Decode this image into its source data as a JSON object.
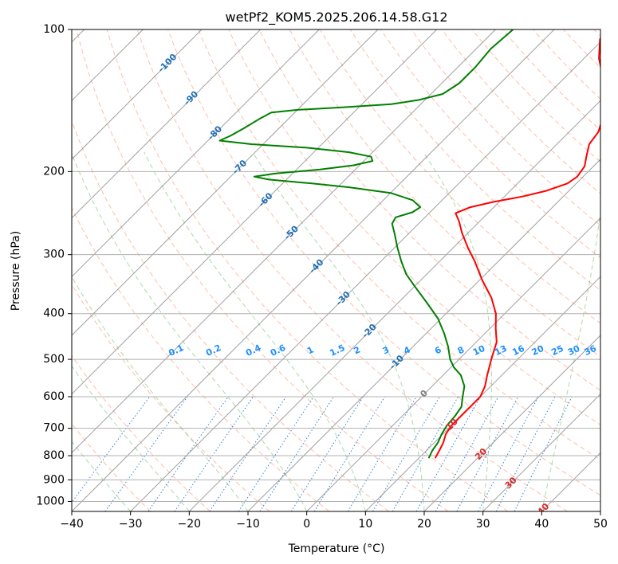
{
  "chart_data": {
    "type": "line",
    "subtype": "skew-t log-p diagram",
    "title": "wetPf2_KOM5.2025.206.14.58.G12",
    "xlabel": "Temperature (°C)",
    "ylabel": "Pressure (hPa)",
    "xlim": [
      -40,
      50
    ],
    "ylim_hpa": [
      1050,
      100
    ],
    "y_scale": "log",
    "skew": "isotherms slanted 45 degrees",
    "grid": true,
    "x_ticks": [
      "−40",
      "−30",
      "−20",
      "−10",
      "0",
      "10",
      "20",
      "30",
      "40",
      "50"
    ],
    "x_tick_values": [
      -40,
      -30,
      -20,
      -10,
      0,
      10,
      20,
      30,
      40,
      50
    ],
    "y_ticks": [
      "100",
      "200",
      "300",
      "400",
      "500",
      "600",
      "700",
      "800",
      "900",
      "1000"
    ],
    "y_tick_values": [
      100,
      200,
      300,
      400,
      500,
      600,
      700,
      800,
      900,
      1000
    ],
    "colors": {
      "temperature": "#ff0000",
      "dewpoint": "#008000",
      "dry_adiabat": "#ff8866",
      "moist_adiabat": "#66bb66",
      "mixing_ratio": "#1f77d4",
      "isotherm": "#808080",
      "isobar": "#b0b0b0",
      "isotherm_label_cold": "#1f6fb4",
      "isotherm_label_warm": "#d62728",
      "isotherm_label_zero": "#808080",
      "mixing_ratio_label": "#1e90ff"
    },
    "series": [
      {
        "key": "temperature",
        "points": [
          {
            "p": 810,
            "t": 12.8
          },
          {
            "p": 780,
            "t": 12.2
          },
          {
            "p": 750,
            "t": 11.5
          },
          {
            "p": 720,
            "t": 10.5
          },
          {
            "p": 690,
            "t": 10.0
          },
          {
            "p": 660,
            "t": 10.0
          },
          {
            "p": 630,
            "t": 10.0
          },
          {
            "p": 600,
            "t": 10.0
          },
          {
            "p": 570,
            "t": 9.0
          },
          {
            "p": 540,
            "t": 7.5
          },
          {
            "p": 500,
            "t": 5.5
          },
          {
            "p": 460,
            "t": 3.5
          },
          {
            "p": 430,
            "t": 1.0
          },
          {
            "p": 400,
            "t": -1.5
          },
          {
            "p": 370,
            "t": -5.0
          },
          {
            "p": 340,
            "t": -9.5
          },
          {
            "p": 310,
            "t": -14.0
          },
          {
            "p": 290,
            "t": -17.5
          },
          {
            "p": 270,
            "t": -21.0
          },
          {
            "p": 255,
            "t": -23.5
          },
          {
            "p": 245,
            "t": -25.5
          },
          {
            "p": 238,
            "t": -24.0
          },
          {
            "p": 232,
            "t": -21.0
          },
          {
            "p": 226,
            "t": -17.0
          },
          {
            "p": 220,
            "t": -14.0
          },
          {
            "p": 212,
            "t": -11.5
          },
          {
            "p": 205,
            "t": -11.0
          },
          {
            "p": 195,
            "t": -11.5
          },
          {
            "p": 185,
            "t": -13.0
          },
          {
            "p": 175,
            "t": -14.5
          },
          {
            "p": 165,
            "t": -15.0
          },
          {
            "p": 155,
            "t": -16.5
          },
          {
            "p": 145,
            "t": -18.5
          },
          {
            "p": 135,
            "t": -21.0
          },
          {
            "p": 125,
            "t": -24.0
          },
          {
            "p": 115,
            "t": -27.5
          },
          {
            "p": 105,
            "t": -30.5
          },
          {
            "p": 100,
            "t": -31.5
          }
        ]
      },
      {
        "key": "dewpoint",
        "points": [
          {
            "p": 810,
            "t": 11.7
          },
          {
            "p": 780,
            "t": 11.0
          },
          {
            "p": 750,
            "t": 10.6
          },
          {
            "p": 720,
            "t": 9.8
          },
          {
            "p": 690,
            "t": 9.2
          },
          {
            "p": 660,
            "t": 9.0
          },
          {
            "p": 630,
            "t": 8.5
          },
          {
            "p": 600,
            "t": 7.0
          },
          {
            "p": 570,
            "t": 5.5
          },
          {
            "p": 540,
            "t": 3.0
          },
          {
            "p": 520,
            "t": 0.5
          },
          {
            "p": 500,
            "t": -1.5
          },
          {
            "p": 470,
            "t": -4.0
          },
          {
            "p": 440,
            "t": -7.0
          },
          {
            "p": 410,
            "t": -10.5
          },
          {
            "p": 380,
            "t": -15.0
          },
          {
            "p": 350,
            "t": -20.0
          },
          {
            "p": 330,
            "t": -23.5
          },
          {
            "p": 310,
            "t": -26.5
          },
          {
            "p": 290,
            "t": -29.5
          },
          {
            "p": 270,
            "t": -32.5
          },
          {
            "p": 258,
            "t": -34.5
          },
          {
            "p": 250,
            "t": -35.0
          },
          {
            "p": 244,
            "t": -33.0
          },
          {
            "p": 238,
            "t": -32.5
          },
          {
            "p": 230,
            "t": -35.0
          },
          {
            "p": 222,
            "t": -40.0
          },
          {
            "p": 216,
            "t": -48.0
          },
          {
            "p": 212,
            "t": -55.0
          },
          {
            "p": 208,
            "t": -63.0
          },
          {
            "p": 205,
            "t": -66.0
          },
          {
            "p": 202,
            "t": -63.0
          },
          {
            "p": 198,
            "t": -56.0
          },
          {
            "p": 194,
            "t": -51.0
          },
          {
            "p": 190,
            "t": -48.5
          },
          {
            "p": 186,
            "t": -49.5
          },
          {
            "p": 182,
            "t": -54.0
          },
          {
            "p": 178,
            "t": -62.0
          },
          {
            "p": 175,
            "t": -72.0
          },
          {
            "p": 172,
            "t": -78.0
          },
          {
            "p": 168,
            "t": -77.0
          },
          {
            "p": 162,
            "t": -76.0
          },
          {
            "p": 155,
            "t": -75.0
          },
          {
            "p": 150,
            "t": -74.0
          },
          {
            "p": 148,
            "t": -70.0
          },
          {
            "p": 146,
            "t": -62.0
          },
          {
            "p": 144,
            "t": -55.0
          },
          {
            "p": 141,
            "t": -51.0
          },
          {
            "p": 137,
            "t": -48.0
          },
          {
            "p": 130,
            "t": -47.0
          },
          {
            "p": 120,
            "t": -47.0
          },
          {
            "p": 110,
            "t": -47.5
          },
          {
            "p": 100,
            "t": -47.0
          }
        ]
      }
    ],
    "isotherm_labels": [
      {
        "text": "-100",
        "t": -100,
        "p": 118,
        "color_key": "isotherm_label_cold"
      },
      {
        "text": "-90",
        "t": -90,
        "p": 140,
        "color_key": "isotherm_label_cold"
      },
      {
        "text": "-80",
        "t": -80,
        "p": 166,
        "color_key": "isotherm_label_cold"
      },
      {
        "text": "-70",
        "t": -70,
        "p": 196,
        "color_key": "isotherm_label_cold"
      },
      {
        "text": "-60",
        "t": -60,
        "p": 230,
        "color_key": "isotherm_label_cold"
      },
      {
        "text": "-50",
        "t": -50,
        "p": 270,
        "color_key": "isotherm_label_cold"
      },
      {
        "text": "-40",
        "t": -40,
        "p": 318,
        "color_key": "isotherm_label_cold"
      },
      {
        "text": "-30",
        "t": -30,
        "p": 372,
        "color_key": "isotherm_label_cold"
      },
      {
        "text": "-20",
        "t": -20,
        "p": 436,
        "color_key": "isotherm_label_cold"
      },
      {
        "text": "-10",
        "t": -10,
        "p": 508,
        "color_key": "isotherm_label_cold"
      },
      {
        "text": "0",
        "t": 0,
        "p": 592,
        "color_key": "isotherm_label_zero"
      },
      {
        "text": "10",
        "t": 10,
        "p": 688,
        "color_key": "isotherm_label_warm"
      },
      {
        "text": "20",
        "t": 20,
        "p": 795,
        "color_key": "isotherm_label_warm"
      },
      {
        "text": "30",
        "t": 30,
        "p": 915,
        "color_key": "isotherm_label_warm"
      },
      {
        "text": "40",
        "t": 40,
        "p": 1040,
        "color_key": "isotherm_label_warm"
      }
    ],
    "mixing_ratio_lines": [
      {
        "text": "0.1",
        "w": 0.1
      },
      {
        "text": "0.2",
        "w": 0.2
      },
      {
        "text": "0.4",
        "w": 0.4
      },
      {
        "text": "0.6",
        "w": 0.6
      },
      {
        "text": "1",
        "w": 1
      },
      {
        "text": "1.5",
        "w": 1.5
      },
      {
        "text": "2",
        "w": 2
      },
      {
        "text": "3",
        "w": 3
      },
      {
        "text": "4",
        "w": 4
      },
      {
        "text": "6",
        "w": 6
      },
      {
        "text": "8",
        "w": 8
      },
      {
        "text": "10",
        "w": 10
      },
      {
        "text": "13",
        "w": 13
      },
      {
        "text": "16",
        "w": 16
      },
      {
        "text": "20",
        "w": 20
      },
      {
        "text": "25",
        "w": 25
      },
      {
        "text": "30",
        "w": 30
      },
      {
        "text": "36",
        "w": 36
      }
    ],
    "mixing_ratio_label_pressure": 500,
    "dry_adiabat_thetas_c": [
      -30,
      -20,
      -10,
      0,
      10,
      20,
      30,
      40,
      50,
      60,
      70,
      80,
      90,
      100,
      110,
      120,
      130,
      140,
      150,
      160,
      170,
      180,
      190,
      200,
      210,
      220
    ],
    "moist_adiabat_start_t_c": [
      -30,
      -20,
      -10,
      0,
      10,
      20,
      30,
      40
    ],
    "isotherm_values_c": [
      -130,
      -120,
      -110,
      -100,
      -90,
      -80,
      -70,
      -60,
      -50,
      -40,
      -30,
      -20,
      -10,
      0,
      10,
      20,
      30,
      40,
      50
    ]
  }
}
